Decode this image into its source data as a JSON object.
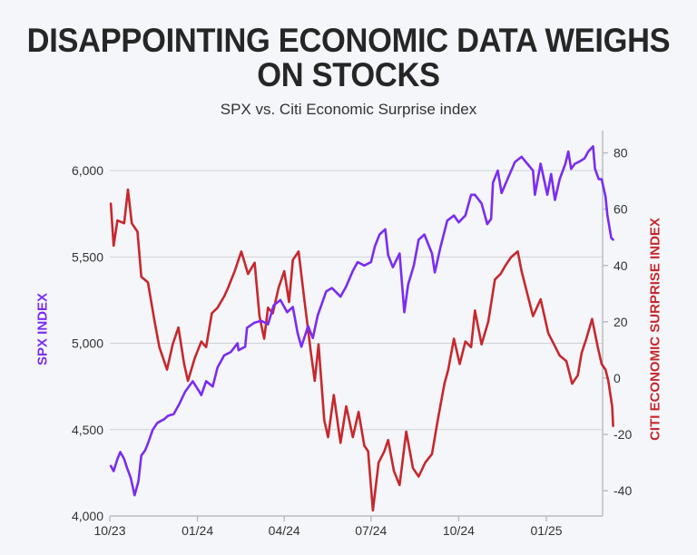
{
  "chart_data": {
    "type": "line",
    "title": "DISAPPOINTING ECONOMIC DATA WEIGHS ON STOCKS",
    "subtitle": "SPX vs. Citi Economic Surprise index",
    "ylabel_left": "SPX INDEX",
    "ylabel_right": "CITI ECONOMIC SURPRISE INDEX",
    "x_ticks": [
      "10/23",
      "01/24",
      "04/24",
      "07/24",
      "10/24",
      "01/25"
    ],
    "x_tick_dates": [
      "2023-10-01",
      "2024-01-01",
      "2024-04-01",
      "2024-07-01",
      "2024-10-01",
      "2025-01-01"
    ],
    "xlim": [
      "2023-10-01",
      "2025-03-01"
    ],
    "y_left_ticks": [
      "4,000",
      "4,500",
      "5,000",
      "5,500",
      "6,000"
    ],
    "y_left_tick_values": [
      4000,
      4500,
      5000,
      5500,
      6000
    ],
    "ylim_left": [
      4000,
      6200
    ],
    "y_right_ticks": [
      "-40",
      "-20",
      "0",
      "20",
      "40",
      "60",
      "80"
    ],
    "y_right_tick_values": [
      -40,
      -20,
      0,
      20,
      40,
      60,
      80
    ],
    "ylim_right": [
      -49,
      86
    ],
    "grid": true,
    "colors": {
      "spx": "#7a2cf2",
      "cesi": "#c6282d"
    },
    "series": [
      {
        "axis": "left",
        "x": [
          "2023-10-02",
          "2023-10-05",
          "2023-10-09",
          "2023-10-12",
          "2023-10-16",
          "2023-10-19",
          "2023-10-23",
          "2023-10-27",
          "2023-10-31",
          "2023-11-03",
          "2023-11-07",
          "2023-11-10",
          "2023-11-15",
          "2023-11-20",
          "2023-11-27",
          "2023-12-01",
          "2023-12-07",
          "2023-12-13",
          "2023-12-19",
          "2023-12-27",
          "2024-01-03",
          "2024-01-05",
          "2024-01-10",
          "2024-01-17",
          "2024-01-22",
          "2024-01-29",
          "2024-02-05",
          "2024-02-12",
          "2024-02-13",
          "2024-02-20",
          "2024-02-22",
          "2024-03-01",
          "2024-03-08",
          "2024-03-15",
          "2024-03-21",
          "2024-03-28",
          "2024-04-04",
          "2024-04-10",
          "2024-04-15",
          "2024-04-19",
          "2024-04-26",
          "2024-05-01",
          "2024-05-06",
          "2024-05-15",
          "2024-05-21",
          "2024-05-30",
          "2024-06-05",
          "2024-06-12",
          "2024-06-17",
          "2024-06-24",
          "2024-07-01",
          "2024-07-05",
          "2024-07-10",
          "2024-07-16",
          "2024-07-19",
          "2024-07-24",
          "2024-07-31",
          "2024-08-05",
          "2024-08-09",
          "2024-08-15",
          "2024-08-20",
          "2024-08-26",
          "2024-09-03",
          "2024-09-06",
          "2024-09-12",
          "2024-09-19",
          "2024-09-26",
          "2024-10-01",
          "2024-10-08",
          "2024-10-14",
          "2024-10-18",
          "2024-10-25",
          "2024-10-31",
          "2024-11-04",
          "2024-11-06",
          "2024-11-11",
          "2024-11-15",
          "2024-11-22",
          "2024-11-29",
          "2024-12-06",
          "2024-12-12",
          "2024-12-18",
          "2024-12-20",
          "2024-12-26",
          "2025-01-02",
          "2025-01-06",
          "2025-01-10",
          "2025-01-15",
          "2025-01-21",
          "2025-01-24",
          "2025-01-27",
          "2025-01-31",
          "2025-02-04",
          "2025-02-10",
          "2025-02-14",
          "2025-02-19",
          "2025-02-21",
          "2025-02-25",
          "2025-02-28",
          "2025-03-04",
          "2025-03-06",
          "2025-03-10",
          "2025-03-12"
        ],
        "values": [
          4290,
          4260,
          4330,
          4370,
          4330,
          4280,
          4220,
          4120,
          4200,
          4350,
          4380,
          4420,
          4500,
          4540,
          4560,
          4580,
          4590,
          4650,
          4720,
          4780,
          4720,
          4700,
          4780,
          4750,
          4860,
          4930,
          4950,
          5000,
          4960,
          4980,
          5090,
          5120,
          5130,
          5110,
          5220,
          5250,
          5180,
          5210,
          5060,
          4980,
          5100,
          5030,
          5160,
          5300,
          5320,
          5270,
          5330,
          5420,
          5470,
          5450,
          5470,
          5560,
          5630,
          5660,
          5510,
          5440,
          5520,
          5180,
          5340,
          5450,
          5600,
          5630,
          5520,
          5410,
          5560,
          5710,
          5740,
          5700,
          5740,
          5860,
          5860,
          5810,
          5690,
          5720,
          5930,
          6000,
          5870,
          5960,
          6050,
          6080,
          6040,
          6000,
          5860,
          6040,
          5860,
          5980,
          5830,
          5950,
          6040,
          6110,
          6010,
          6040,
          6050,
          6070,
          6110,
          6140,
          6010,
          5950,
          5950,
          5850,
          5740,
          5610,
          5600
        ]
      },
      {
        "axis": "right",
        "x": [
          "2023-10-02",
          "2023-10-05",
          "2023-10-09",
          "2023-10-16",
          "2023-10-20",
          "2023-10-24",
          "2023-10-30",
          "2023-11-03",
          "2023-11-10",
          "2023-11-17",
          "2023-11-22",
          "2023-11-30",
          "2023-12-06",
          "2023-12-12",
          "2023-12-18",
          "2023-12-22",
          "2023-12-29",
          "2024-01-05",
          "2024-01-10",
          "2024-01-16",
          "2024-01-22",
          "2024-01-29",
          "2024-02-02",
          "2024-02-09",
          "2024-02-16",
          "2024-02-23",
          "2024-03-01",
          "2024-03-06",
          "2024-03-11",
          "2024-03-15",
          "2024-03-20",
          "2024-03-26",
          "2024-04-01",
          "2024-04-06",
          "2024-04-10",
          "2024-04-16",
          "2024-04-22",
          "2024-04-29",
          "2024-05-03",
          "2024-05-07",
          "2024-05-13",
          "2024-05-17",
          "2024-05-23",
          "2024-05-30",
          "2024-06-05",
          "2024-06-12",
          "2024-06-18",
          "2024-06-24",
          "2024-06-28",
          "2024-07-03",
          "2024-07-09",
          "2024-07-15",
          "2024-07-19",
          "2024-07-25",
          "2024-07-31",
          "2024-08-07",
          "2024-08-14",
          "2024-08-20",
          "2024-08-27",
          "2024-09-03",
          "2024-09-09",
          "2024-09-16",
          "2024-09-20",
          "2024-09-26",
          "2024-10-02",
          "2024-10-08",
          "2024-10-14",
          "2024-10-18",
          "2024-10-25",
          "2024-11-01",
          "2024-11-08",
          "2024-11-14",
          "2024-11-19",
          "2024-11-25",
          "2024-12-02",
          "2024-12-06",
          "2024-12-12",
          "2024-12-18",
          "2024-12-26",
          "2025-01-03",
          "2025-01-09",
          "2025-01-15",
          "2025-01-22",
          "2025-01-28",
          "2025-02-03",
          "2025-02-07",
          "2025-02-12",
          "2025-02-18",
          "2025-02-24",
          "2025-02-28",
          "2025-03-04",
          "2025-03-07",
          "2025-03-11",
          "2025-03-12"
        ],
        "values": [
          62,
          47,
          56,
          55,
          67,
          55,
          52,
          36,
          34,
          20,
          11,
          3,
          12,
          18,
          5,
          -1,
          7,
          13,
          11,
          23,
          25,
          29,
          32,
          38,
          45,
          37,
          41,
          22,
          14,
          25,
          23,
          32,
          38,
          27,
          42,
          45,
          28,
          9,
          -1,
          12,
          -15,
          -21,
          -6,
          -23,
          -10,
          -21,
          -12,
          -24,
          -26,
          -47,
          -30,
          -26,
          -22,
          -33,
          -38,
          -19,
          -32,
          -35,
          -30,
          -27,
          -15,
          -2,
          3,
          14,
          5,
          13,
          11,
          24,
          12,
          20,
          35,
          37,
          40,
          43,
          45,
          38,
          30,
          22,
          28,
          16,
          12,
          8,
          6,
          -2,
          1,
          9,
          14,
          21,
          11,
          5,
          3,
          -1,
          -10,
          -17
        ]
      }
    ]
  }
}
